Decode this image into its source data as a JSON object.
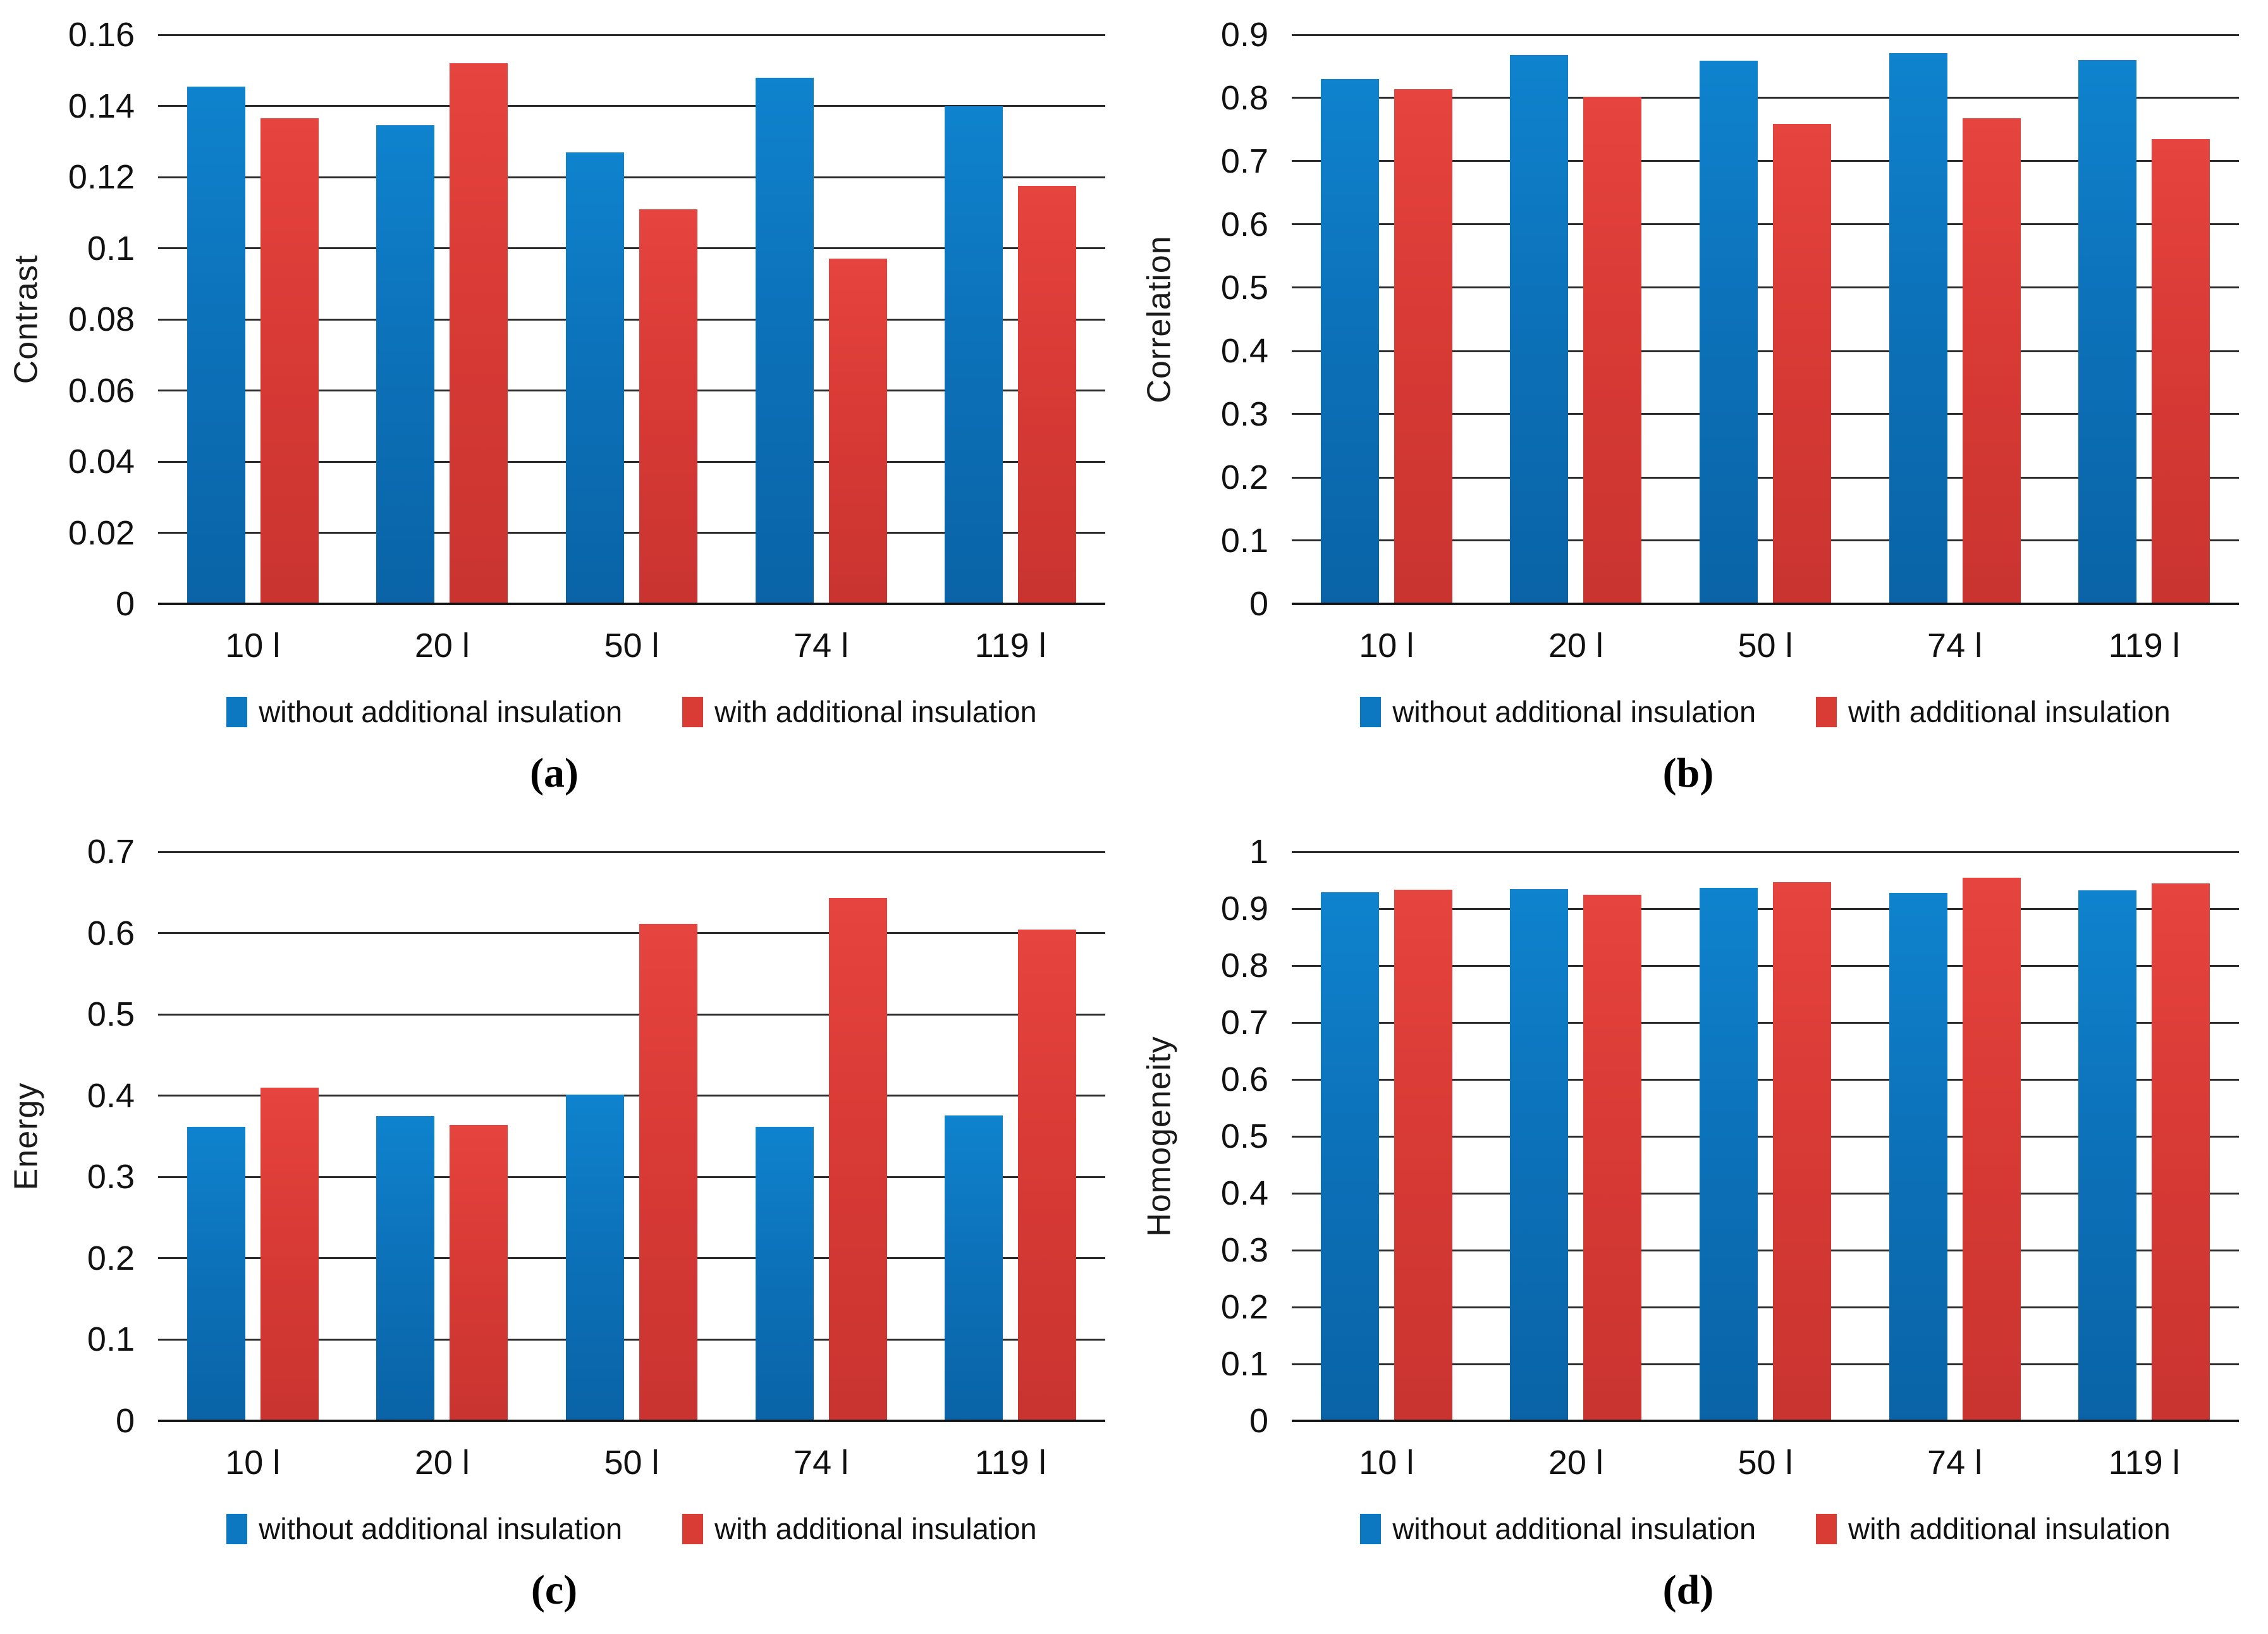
{
  "figure": {
    "captions": [
      "(a)",
      "(b)",
      "(c)",
      "(d)"
    ],
    "series_colors": {
      "series1": "#0d78c2",
      "series2": "#d93b35"
    },
    "categories": [
      "10 l",
      "20 l",
      "50 l",
      "74 l",
      "119 l"
    ]
  },
  "chart_data": [
    {
      "type": "bar",
      "panel_label": "(a)",
      "title": "",
      "xlabel": "",
      "ylabel": "Contrast",
      "ylim": [
        0,
        0.16
      ],
      "grid": true,
      "legend_position": "bottom",
      "yticks": [
        "0.16",
        "0.14",
        "0.12",
        "0.1",
        "0.08",
        "0.06",
        "0.04",
        "0.02",
        "0"
      ],
      "categories": [
        "10 l",
        "20 l",
        "50 l",
        "74 l",
        "119 l"
      ],
      "series": [
        {
          "name": "without additional insulation",
          "color": "#0d78c2",
          "values": [
            0.1455,
            0.1345,
            0.127,
            0.148,
            0.14
          ]
        },
        {
          "name": "with additional insulation",
          "color": "#d93b35",
          "values": [
            0.1365,
            0.152,
            0.111,
            0.097,
            0.1175
          ]
        }
      ]
    },
    {
      "type": "bar",
      "panel_label": "(b)",
      "title": "",
      "xlabel": "",
      "ylabel": "Correlation",
      "ylim": [
        0,
        0.9
      ],
      "grid": true,
      "legend_position": "bottom",
      "yticks": [
        "0.9",
        "0.8",
        "0.7",
        "0.6",
        "0.5",
        "0.4",
        "0.3",
        "0.2",
        "0.1",
        "0"
      ],
      "categories": [
        "10 l",
        "20 l",
        "50 l",
        "74 l",
        "119 l"
      ],
      "series": [
        {
          "name": "without additional insulation",
          "color": "#0d78c2",
          "values": [
            0.83,
            0.868,
            0.859,
            0.871,
            0.86
          ]
        },
        {
          "name": "with additional insulation",
          "color": "#d93b35",
          "values": [
            0.814,
            0.802,
            0.759,
            0.768,
            0.735
          ]
        }
      ]
    },
    {
      "type": "bar",
      "panel_label": "(c)",
      "title": "",
      "xlabel": "",
      "ylabel": "Energy",
      "ylim": [
        0,
        0.7
      ],
      "grid": true,
      "legend_position": "bottom",
      "yticks": [
        "0.7",
        "0.6",
        "0.5",
        "0.4",
        "0.3",
        "0.2",
        "0.1",
        "0"
      ],
      "categories": [
        "10 l",
        "20 l",
        "50 l",
        "74 l",
        "119 l"
      ],
      "series": [
        {
          "name": "without additional insulation",
          "color": "#0d78c2",
          "values": [
            0.362,
            0.375,
            0.401,
            0.362,
            0.376
          ]
        },
        {
          "name": "with additional insulation",
          "color": "#d93b35",
          "values": [
            0.41,
            0.364,
            0.611,
            0.643,
            0.604
          ]
        }
      ]
    },
    {
      "type": "bar",
      "panel_label": "(d)",
      "title": "",
      "xlabel": "",
      "ylabel": "Homogeneity",
      "ylim": [
        0,
        1
      ],
      "grid": true,
      "legend_position": "bottom",
      "yticks": [
        "1",
        "0.9",
        "0.8",
        "0.7",
        "0.6",
        "0.5",
        "0.4",
        "0.3",
        "0.2",
        "0.1",
        "0"
      ],
      "categories": [
        "10 l",
        "20 l",
        "50 l",
        "74 l",
        "119 l"
      ],
      "series": [
        {
          "name": "without additional insulation",
          "color": "#0d78c2",
          "values": [
            0.929,
            0.935,
            0.937,
            0.928,
            0.932
          ]
        },
        {
          "name": "with additional insulation",
          "color": "#d93b35",
          "values": [
            0.933,
            0.925,
            0.947,
            0.955,
            0.944
          ]
        }
      ]
    }
  ]
}
